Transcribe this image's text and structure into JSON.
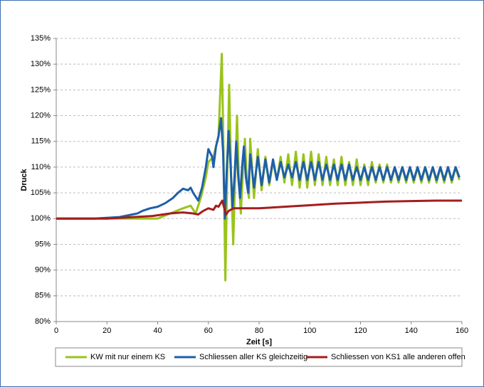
{
  "chart_data": {
    "type": "line",
    "y_label": "Druck",
    "x_label": "Zeit [s]",
    "xlim": [
      0,
      160
    ],
    "xticks": [
      0,
      20,
      40,
      60,
      80,
      100,
      120,
      140,
      160
    ],
    "ylim": [
      80,
      135
    ],
    "yticks": [
      {
        "value": 80,
        "label": "80%"
      },
      {
        "value": 85,
        "label": "85%"
      },
      {
        "value": 90,
        "label": "90%"
      },
      {
        "value": 95,
        "label": "95%"
      },
      {
        "value": 100,
        "label": "100%"
      },
      {
        "value": 105,
        "label": "105%"
      },
      {
        "value": 110,
        "label": "110%"
      },
      {
        "value": 115,
        "label": "115%"
      },
      {
        "value": 120,
        "label": "120%"
      },
      {
        "value": 125,
        "label": "125%"
      },
      {
        "value": 130,
        "label": "130%"
      },
      {
        "value": 135,
        "label": "135%"
      }
    ],
    "grid": true,
    "legend": "bottom",
    "series": [
      {
        "name": "KW mit nur einem KS",
        "color": "#9ac31c",
        "x": [
          0,
          20,
          40,
          45,
          50,
          53,
          55,
          57,
          59,
          60,
          62,
          64,
          65.3,
          66,
          66.7,
          67.5,
          68.2,
          69,
          69.8,
          70.7,
          71.3,
          72,
          72.8,
          73.7,
          74.4,
          75.2,
          76,
          76.5,
          78,
          79.5,
          81,
          82.5,
          84,
          85.5,
          87,
          88.5,
          90,
          91.5,
          93,
          94.5,
          96,
          97.5,
          99,
          100.5,
          102,
          103.5,
          105,
          106.5,
          108,
          109.5,
          111,
          112.5,
          114,
          115.5,
          117,
          118.5,
          120,
          121.5,
          123,
          124.5,
          126,
          127.5,
          129,
          130.5,
          132,
          133.5,
          135,
          136.5,
          138,
          139.5,
          141,
          142.5,
          144,
          145.5,
          147,
          148.5,
          150,
          151.5,
          153,
          154.5,
          156,
          157.5,
          159
        ],
        "values": [
          100,
          100,
          100,
          101,
          102,
          102.5,
          101,
          104,
          108,
          111,
          112,
          116,
          132,
          112,
          88,
          110,
          126,
          108,
          95,
          110,
          120,
          108,
          101,
          110,
          115.5,
          107,
          104,
          115.5,
          104,
          113.5,
          105.5,
          112,
          106.5,
          111,
          107.5,
          112,
          107,
          112.5,
          106.5,
          113,
          106,
          112.5,
          106,
          113,
          106.5,
          112.5,
          106.5,
          112,
          106.5,
          111.5,
          106.5,
          112,
          106.5,
          111,
          106.5,
          111.5,
          106.5,
          110.5,
          106.5,
          111,
          107,
          110.5,
          107,
          110.5,
          107,
          110,
          107,
          110,
          107,
          110,
          107,
          110,
          107,
          110,
          107,
          110,
          107,
          110,
          107,
          110,
          107,
          110,
          107.5
        ]
      },
      {
        "name": "Schliessen aller KS gleichzeitig",
        "color": "#1f5fa8",
        "x": [
          0,
          15,
          25,
          30,
          32,
          34,
          37,
          40,
          43,
          46,
          48,
          50,
          52,
          53,
          54,
          56,
          57.5,
          59,
          60,
          61.5,
          62,
          63,
          64,
          65,
          65.8,
          66.5,
          67.3,
          68,
          68.8,
          69.5,
          70.3,
          71,
          71.8,
          72.5,
          73.3,
          74,
          74.8,
          75.7,
          76.5,
          78,
          79.5,
          81,
          82.5,
          84,
          85.5,
          87,
          88.5,
          90,
          91.5,
          93,
          94.5,
          96,
          97.5,
          99,
          100.5,
          102,
          103.5,
          105,
          106.5,
          108,
          109.5,
          111,
          112.5,
          114,
          115.5,
          117,
          118.5,
          120,
          121.5,
          123,
          124.5,
          126,
          127.5,
          129,
          130.5,
          132,
          133.5,
          135,
          136.5,
          138,
          139.5,
          141,
          142.5,
          144,
          145.5,
          147,
          148.5,
          150,
          151.5,
          153,
          154.5,
          156,
          157.5,
          159
        ],
        "values": [
          100,
          100,
          100.3,
          100.8,
          101,
          101.5,
          102,
          102.3,
          103,
          104,
          105,
          105.8,
          105.5,
          106,
          105,
          103.5,
          106,
          110,
          113.5,
          112,
          110,
          114,
          116,
          119.5,
          113,
          100,
          110,
          117,
          110,
          102,
          108,
          115,
          108,
          104,
          110,
          114,
          108,
          105,
          112.5,
          106,
          112,
          106.5,
          111.5,
          107,
          111.5,
          107.5,
          111,
          108,
          110.5,
          108,
          111,
          107.5,
          111,
          107.5,
          111,
          107.5,
          111,
          107.5,
          110.5,
          107.5,
          110.5,
          107.5,
          110.5,
          107.5,
          110.5,
          107.5,
          110,
          107.5,
          110,
          107.5,
          110,
          107.5,
          110,
          107.5,
          110,
          107.5,
          110,
          107.5,
          110,
          107.5,
          110,
          107.5,
          110,
          107.5,
          110,
          107.5,
          110,
          107.5,
          110,
          107.5,
          110,
          107.5,
          110,
          108
        ]
      },
      {
        "name": "Schliessen von KS1 alle anderen offen",
        "color": "#a31e1e",
        "x": [
          0,
          20,
          38,
          45,
          50,
          54,
          56,
          58,
          60,
          62,
          63,
          64,
          65.5,
          66,
          67,
          68,
          70,
          80,
          90,
          100,
          110,
          120,
          130,
          140,
          150,
          160
        ],
        "values": [
          100,
          100,
          100.5,
          101,
          101.2,
          101,
          100.8,
          101.5,
          102,
          101.7,
          102.5,
          102.3,
          103.5,
          102.5,
          100.8,
          101.5,
          102,
          102,
          102.3,
          102.6,
          102.9,
          103.1,
          103.3,
          103.4,
          103.5,
          103.5
        ]
      }
    ]
  }
}
